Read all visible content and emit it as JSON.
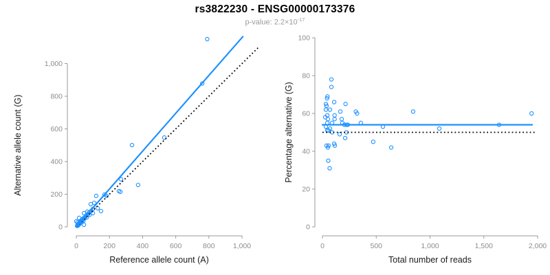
{
  "header": {
    "title": "rs3822230 - ENSG00000173376",
    "subtitle_prefix": "p-value: 2.2×10",
    "subtitle_exponent": "-17"
  },
  "colors": {
    "accent_blue": "#1E90FF",
    "axis_gray": "#999999",
    "tick_label_gray": "#8c8c8c",
    "axis_title_color": "#1a1a1a",
    "dotted_line_black": "#000000"
  },
  "chart_data": [
    {
      "type": "scatter",
      "name": "allele-counts",
      "xlabel": "Reference allele count (A)",
      "ylabel": "Alternative allele count (G)",
      "xlim": [
        0,
        1000
      ],
      "ylim": [
        0,
        1000
      ],
      "xticks": [
        0,
        200,
        400,
        600,
        800,
        1000
      ],
      "yticks": [
        0,
        200,
        400,
        600,
        800,
        1000
      ],
      "xtick_labels": [
        "0",
        "200",
        "400",
        "600",
        "800",
        "1,000"
      ],
      "ytick_labels": [
        "0",
        "200",
        "400",
        "600",
        "800",
        "1,000"
      ],
      "grid": false,
      "points": [
        [
          0,
          34
        ],
        [
          5,
          6
        ],
        [
          7,
          10
        ],
        [
          8,
          29
        ],
        [
          9,
          14
        ],
        [
          11,
          9
        ],
        [
          13,
          18
        ],
        [
          15,
          22
        ],
        [
          17,
          55
        ],
        [
          18,
          16
        ],
        [
          20,
          26
        ],
        [
          22,
          30
        ],
        [
          25,
          24
        ],
        [
          28,
          34
        ],
        [
          30,
          40
        ],
        [
          33,
          31
        ],
        [
          35,
          45
        ],
        [
          37,
          42
        ],
        [
          40,
          48
        ],
        [
          43,
          38
        ],
        [
          46,
          13
        ],
        [
          46,
          55
        ],
        [
          46,
          84
        ],
        [
          50,
          52
        ],
        [
          55,
          62
        ],
        [
          60,
          70
        ],
        [
          63,
          58
        ],
        [
          66,
          93
        ],
        [
          70,
          78
        ],
        [
          75,
          86
        ],
        [
          80,
          74
        ],
        [
          87,
          139
        ],
        [
          90,
          98
        ],
        [
          100,
          84
        ],
        [
          100,
          110
        ],
        [
          108,
          147
        ],
        [
          120,
          190
        ],
        [
          129,
          114
        ],
        [
          149,
          97
        ],
        [
          170,
          198
        ],
        [
          183,
          190
        ],
        [
          257,
          219
        ],
        [
          266,
          215
        ],
        [
          270,
          291
        ],
        [
          336,
          501
        ],
        [
          373,
          257
        ],
        [
          531,
          547
        ],
        [
          760,
          878
        ],
        [
          790,
          1150
        ]
      ],
      "lines": [
        {
          "name": "identity-line",
          "style": "dotted",
          "color": "#000000",
          "from": [
            0,
            0
          ],
          "to": [
            1100,
            1100
          ]
        },
        {
          "name": "regression-line",
          "style": "solid",
          "color": "#1E90FF",
          "from": [
            0,
            0
          ],
          "to": [
            1005,
            1165
          ]
        }
      ]
    },
    {
      "type": "scatter",
      "name": "percentage-vs-reads",
      "xlabel": "Total number of reads",
      "ylabel": "Percentage alternative (G)",
      "xlim": [
        0,
        2000
      ],
      "ylim": [
        0,
        100
      ],
      "xticks": [
        0,
        500,
        1000,
        1500,
        2000
      ],
      "yticks": [
        0,
        20,
        40,
        60,
        80,
        100
      ],
      "xtick_labels": [
        "0",
        "500",
        "1,000",
        "1,500",
        "2,000"
      ],
      "ytick_labels": [
        "0",
        "20",
        "40",
        "60",
        "80",
        "100"
      ],
      "grid": false,
      "points": [
        [
          26,
          58
        ],
        [
          32,
          65
        ],
        [
          32,
          62
        ],
        [
          32,
          53
        ],
        [
          38,
          64
        ],
        [
          38,
          43
        ],
        [
          43,
          68
        ],
        [
          45,
          59
        ],
        [
          45,
          55
        ],
        [
          45,
          51
        ],
        [
          47,
          69
        ],
        [
          51,
          57
        ],
        [
          51,
          42
        ],
        [
          54,
          35
        ],
        [
          57,
          51
        ],
        [
          57,
          43
        ],
        [
          67,
          31
        ],
        [
          70,
          62
        ],
        [
          70,
          52
        ],
        [
          83,
          78
        ],
        [
          83,
          74
        ],
        [
          89,
          55
        ],
        [
          89,
          50
        ],
        [
          109,
          66
        ],
        [
          109,
          44
        ],
        [
          113,
          59
        ],
        [
          113,
          57
        ],
        [
          115,
          43
        ],
        [
          160,
          49
        ],
        [
          166,
          61
        ],
        [
          179,
          57
        ],
        [
          185,
          55
        ],
        [
          204,
          54
        ],
        [
          211,
          47
        ],
        [
          215,
          65
        ],
        [
          224,
          54
        ],
        [
          224,
          50
        ],
        [
          236,
          54
        ],
        [
          310,
          61
        ],
        [
          322,
          60
        ],
        [
          357,
          55
        ],
        [
          472,
          45
        ],
        [
          562,
          53
        ],
        [
          639,
          42
        ],
        [
          843,
          61
        ],
        [
          1086,
          52
        ],
        [
          1642,
          54
        ],
        [
          1944,
          60
        ]
      ],
      "lines": [
        {
          "name": "expected-50-line",
          "style": "dotted",
          "color": "#000000",
          "from": [
            0,
            50
          ],
          "to": [
            1975,
            50
          ]
        },
        {
          "name": "mean-percentage-line",
          "style": "solid",
          "color": "#1E90FF",
          "from": [
            0,
            54
          ],
          "to": [
            1950,
            54
          ]
        }
      ]
    }
  ]
}
